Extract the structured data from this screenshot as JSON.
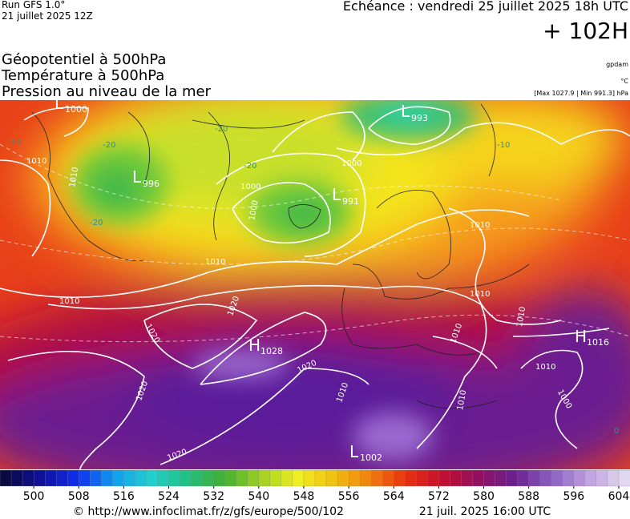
{
  "header": {
    "run": "Run GFS 1.0°",
    "run_date": "21 juillet 2025 12Z",
    "valid": "Echéance : vendredi 25 juillet 2025 18h UTC",
    "lead": "+ 102H",
    "titles": [
      "Géopotentiel à 500hPa",
      "Température à 500hPa",
      "Pression au niveau de la mer"
    ],
    "units": [
      "gpdam",
      "°C",
      "[Max 1027.9 | Min 991.3] hPa"
    ]
  },
  "map": {
    "centers": [
      {
        "letter": "L",
        "value": 1000
      },
      {
        "letter": "L",
        "value": 993
      },
      {
        "letter": "L",
        "value": 996
      },
      {
        "letter": "L",
        "value": 991
      },
      {
        "letter": "H",
        "value": 1028
      },
      {
        "letter": "H",
        "value": 1016
      },
      {
        "letter": "L",
        "value": 1002
      }
    ],
    "isobar_labels": [
      "1010",
      "1010",
      "1000",
      "1000",
      "1000",
      "1010",
      "1010",
      "1020",
      "1020",
      "1020",
      "1020",
      "1020",
      "1010",
      "1010",
      "1010",
      "1010",
      "1010",
      "1000",
      "1010",
      "1010"
    ],
    "temperature_labels": [
      "-20",
      "-20",
      "-20",
      "-20",
      "-10",
      "-10",
      "0"
    ]
  },
  "colorbar": {
    "lim": [
      494,
      606
    ],
    "step": 2,
    "ticks": [
      500,
      508,
      516,
      524,
      532,
      540,
      548,
      556,
      564,
      572,
      580,
      588,
      596,
      604
    ],
    "colors": [
      "#0a0a40",
      "#1010a0",
      "#1030f0",
      "#10a0f0",
      "#20d0d0",
      "#20c080",
      "#40b030",
      "#a0d020",
      "#f0f020",
      "#f0c010",
      "#f08010",
      "#e83010",
      "#c01030",
      "#901060",
      "#6a2090",
      "#8a60c0",
      "#c0a0e0",
      "#e0d8f0"
    ]
  },
  "footer": {
    "url": "© http://www.infoclimat.fr/z/gfs/europe/500/102",
    "timestamp": "21 juil. 2025 16:00 UTC"
  }
}
